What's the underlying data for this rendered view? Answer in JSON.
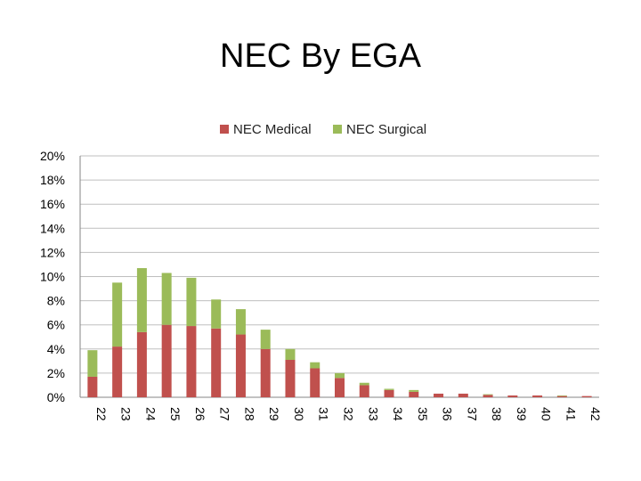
{
  "slide": {
    "title": "NEC By EGA"
  },
  "chart_data": {
    "type": "bar",
    "stacked": true,
    "title": "NEC By EGA",
    "xlabel": "",
    "ylabel": "",
    "categories": [
      "22",
      "23",
      "24",
      "25",
      "26",
      "27",
      "28",
      "29",
      "30",
      "31",
      "32",
      "33",
      "34",
      "35",
      "36",
      "37",
      "38",
      "39",
      "40",
      "41",
      "42"
    ],
    "series": [
      {
        "name": "NEC Medical",
        "color": "#c0504d",
        "values": [
          1.7,
          4.2,
          5.4,
          6.0,
          5.9,
          5.7,
          5.2,
          4.0,
          3.1,
          2.4,
          1.6,
          1.0,
          0.6,
          0.45,
          0.3,
          0.3,
          0.2,
          0.15,
          0.15,
          0.1,
          0.1
        ]
      },
      {
        "name": "NEC Surgical",
        "color": "#9bbb59",
        "values": [
          2.2,
          5.3,
          5.3,
          4.3,
          4.0,
          2.4,
          2.1,
          1.6,
          0.9,
          0.5,
          0.4,
          0.2,
          0.1,
          0.15,
          0.0,
          0.0,
          0.05,
          0.0,
          0.0,
          0.05,
          0.0
        ]
      }
    ],
    "ylim": [
      0,
      20
    ],
    "yticks": [
      "0%",
      "2%",
      "4%",
      "6%",
      "8%",
      "10%",
      "12%",
      "14%",
      "16%",
      "18%",
      "20%"
    ],
    "grid": true,
    "legend": "top"
  }
}
